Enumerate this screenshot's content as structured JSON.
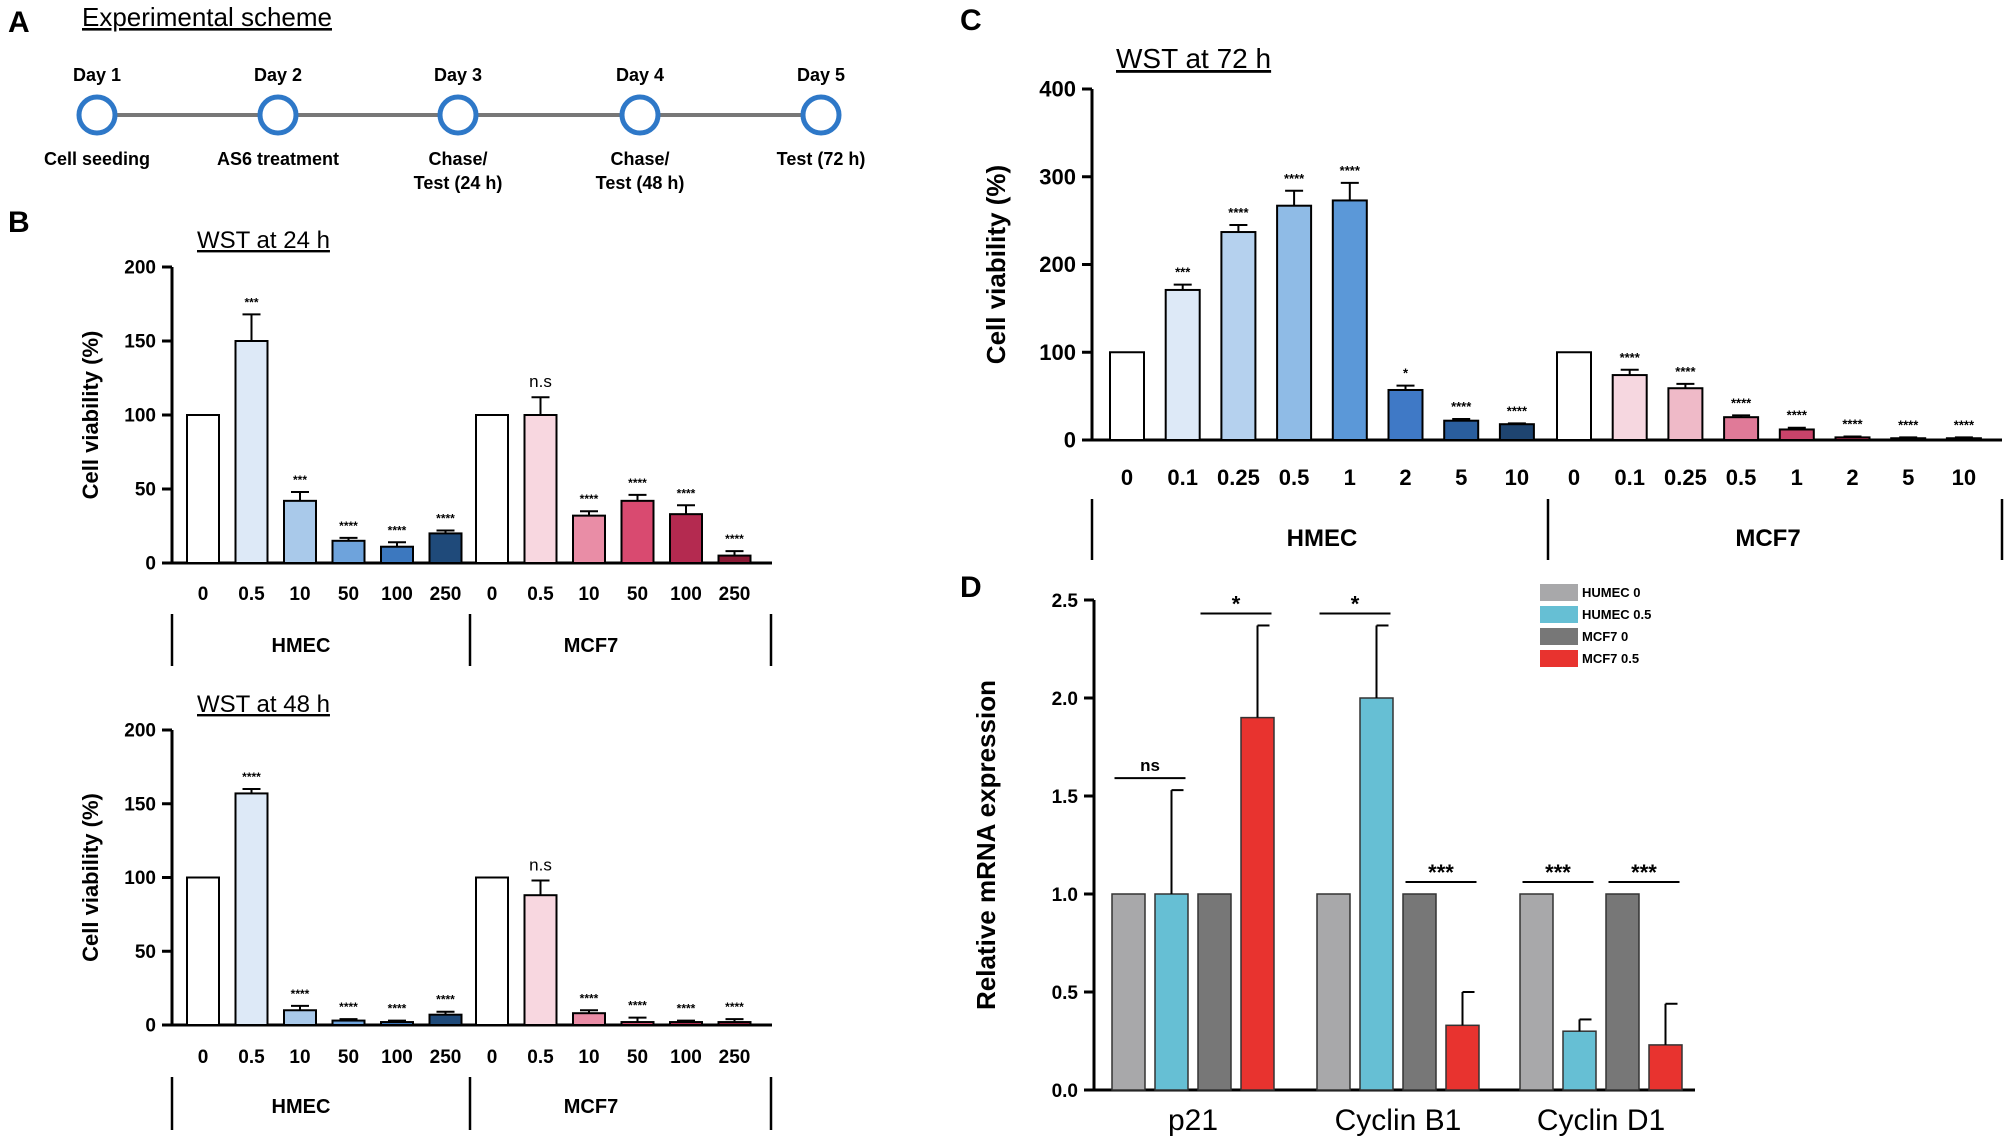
{
  "panels": {
    "A": {
      "letter": "A",
      "title": "Experimental scheme",
      "steps": [
        {
          "day": "Day 1",
          "lines": [
            "Cell seeding"
          ]
        },
        {
          "day": "Day 2",
          "lines": [
            "AS6 treatment"
          ]
        },
        {
          "day": "Day 3",
          "lines": [
            "Chase/",
            "Test (24 h)"
          ]
        },
        {
          "day": "Day 4",
          "lines": [
            "Chase/",
            "Test (48 h)"
          ]
        },
        {
          "day": "Day 5",
          "lines": [
            "Test (72 h)"
          ]
        }
      ]
    },
    "B": {
      "letter": "B"
    },
    "C": {
      "letter": "C"
    },
    "D": {
      "letter": "D"
    }
  },
  "colors": {
    "hmec": [
      "#ffffff",
      "#dde9f7",
      "#a9c9ea",
      "#6ea3dc",
      "#3c78bf",
      "#1f4a7a"
    ],
    "mcf7": [
      "#ffffff",
      "#f8d7e0",
      "#e98da6",
      "#d94a70",
      "#b42a50",
      "#8c1a36"
    ],
    "hmec_c": [
      "#ffffff",
      "#dde9f7",
      "#b5d1ee",
      "#8fbbe6",
      "#5b98d8",
      "#3f79c6",
      "#2a5e9e",
      "#1e4470"
    ],
    "mcf7_c": [
      "#ffffff",
      "#f6d7e0",
      "#efbac8",
      "#e07a98",
      "#c9436a",
      "#b42a50",
      "#9a1f40",
      "#7d1632"
    ],
    "gene": [
      "#a8a8aa",
      "#66bfd4",
      "#777777",
      "#e8332f"
    ]
  },
  "chart_data": [
    {
      "panel": "B",
      "type": "bar",
      "title": "WST at 24 h",
      "ylabel": "Cell viability (%)",
      "ylim": [
        0,
        200
      ],
      "yticks": [
        0,
        50,
        100,
        150,
        200
      ],
      "groups": [
        {
          "name": "HMEC",
          "categories": [
            "0",
            "0.5",
            "10",
            "50",
            "100",
            "250"
          ],
          "values": [
            100,
            150,
            42,
            15,
            11,
            20
          ],
          "errors": [
            0,
            18,
            6,
            2,
            3,
            2
          ],
          "significance": [
            "",
            "***",
            "***",
            "****",
            "****",
            "****"
          ]
        },
        {
          "name": "MCF7",
          "categories": [
            "0",
            "0.5",
            "10",
            "50",
            "100",
            "250"
          ],
          "values": [
            100,
            100,
            32,
            42,
            33,
            5
          ],
          "errors": [
            0,
            12,
            3,
            4,
            6,
            3
          ],
          "significance": [
            "",
            "n.s",
            "****",
            "****",
            "****",
            "****"
          ]
        }
      ]
    },
    {
      "panel": "B",
      "type": "bar",
      "title": "WST at 48 h",
      "ylabel": "Cell viability (%)",
      "ylim": [
        0,
        200
      ],
      "yticks": [
        0,
        50,
        100,
        150,
        200
      ],
      "groups": [
        {
          "name": "HMEC",
          "categories": [
            "0",
            "0.5",
            "10",
            "50",
            "100",
            "250"
          ],
          "values": [
            100,
            157,
            10,
            3,
            2,
            7
          ],
          "errors": [
            0,
            3,
            3,
            1,
            1,
            2
          ],
          "significance": [
            "",
            "****",
            "****",
            "****",
            "****",
            "****"
          ]
        },
        {
          "name": "MCF7",
          "categories": [
            "0",
            "0.5",
            "10",
            "50",
            "100",
            "250"
          ],
          "values": [
            100,
            88,
            8,
            2,
            2,
            2
          ],
          "errors": [
            0,
            10,
            2,
            3,
            1,
            2
          ],
          "significance": [
            "",
            "n.s",
            "****",
            "****",
            "****",
            "****"
          ]
        }
      ]
    },
    {
      "panel": "C",
      "type": "bar",
      "title": "WST at 72 h",
      "ylabel": "Cell viability (%)",
      "ylim": [
        0,
        400
      ],
      "yticks": [
        0,
        100,
        200,
        300,
        400
      ],
      "groups": [
        {
          "name": "HMEC",
          "categories": [
            "0",
            "0.1",
            "0.25",
            "0.5",
            "1",
            "2",
            "5",
            "10"
          ],
          "values": [
            100,
            171,
            237,
            267,
            273,
            57,
            22,
            18
          ],
          "errors": [
            0,
            6,
            8,
            17,
            20,
            5,
            2,
            1
          ],
          "significance": [
            "",
            "***",
            "****",
            "****",
            "****",
            "*",
            "****",
            "****"
          ]
        },
        {
          "name": "MCF7",
          "categories": [
            "0",
            "0.1",
            "0.25",
            "0.5",
            "1",
            "2",
            "5",
            "10"
          ],
          "values": [
            100,
            74,
            59,
            26,
            12,
            3,
            2,
            2
          ],
          "errors": [
            0,
            6,
            5,
            2,
            2,
            1,
            1,
            1
          ],
          "significance": [
            "",
            "****",
            "****",
            "****",
            "****",
            "****",
            "****",
            "****"
          ]
        }
      ]
    },
    {
      "panel": "D",
      "type": "bar",
      "ylabel": "Relative mRNA expression",
      "ylim": [
        0,
        2.5
      ],
      "yticks": [
        "0.0",
        "0.5",
        "1.0",
        "1.5",
        "2.0",
        "2.5"
      ],
      "categories": [
        "p21",
        "Cyclin B1",
        "Cyclin D1"
      ],
      "legend_position": "top-right",
      "series": [
        {
          "name": "HUMEC 0",
          "values": [
            1.0,
            1.0,
            1.0
          ],
          "errors": [
            0,
            0,
            0
          ]
        },
        {
          "name": "HUMEC 0.5",
          "values": [
            1.0,
            2.0,
            0.3
          ],
          "errors": [
            0.53,
            0.37,
            0.06
          ]
        },
        {
          "name": "MCF7 0",
          "values": [
            1.0,
            1.0,
            1.0
          ],
          "errors": [
            0,
            0,
            0
          ]
        },
        {
          "name": "MCF7 0.5",
          "values": [
            1.9,
            0.33,
            0.23
          ],
          "errors": [
            0.47,
            0.17,
            0.21
          ]
        }
      ],
      "comparisons": [
        {
          "category": "p21",
          "pair": "HUMEC",
          "label": "ns"
        },
        {
          "category": "p21",
          "pair": "MCF7",
          "label": "*"
        },
        {
          "category": "Cyclin B1",
          "pair": "HUMEC",
          "label": "*"
        },
        {
          "category": "Cyclin B1",
          "pair": "MCF7",
          "label": "***"
        },
        {
          "category": "Cyclin D1",
          "pair": "HUMEC",
          "label": "***"
        },
        {
          "category": "Cyclin D1",
          "pair": "MCF7",
          "label": "***"
        }
      ]
    }
  ]
}
